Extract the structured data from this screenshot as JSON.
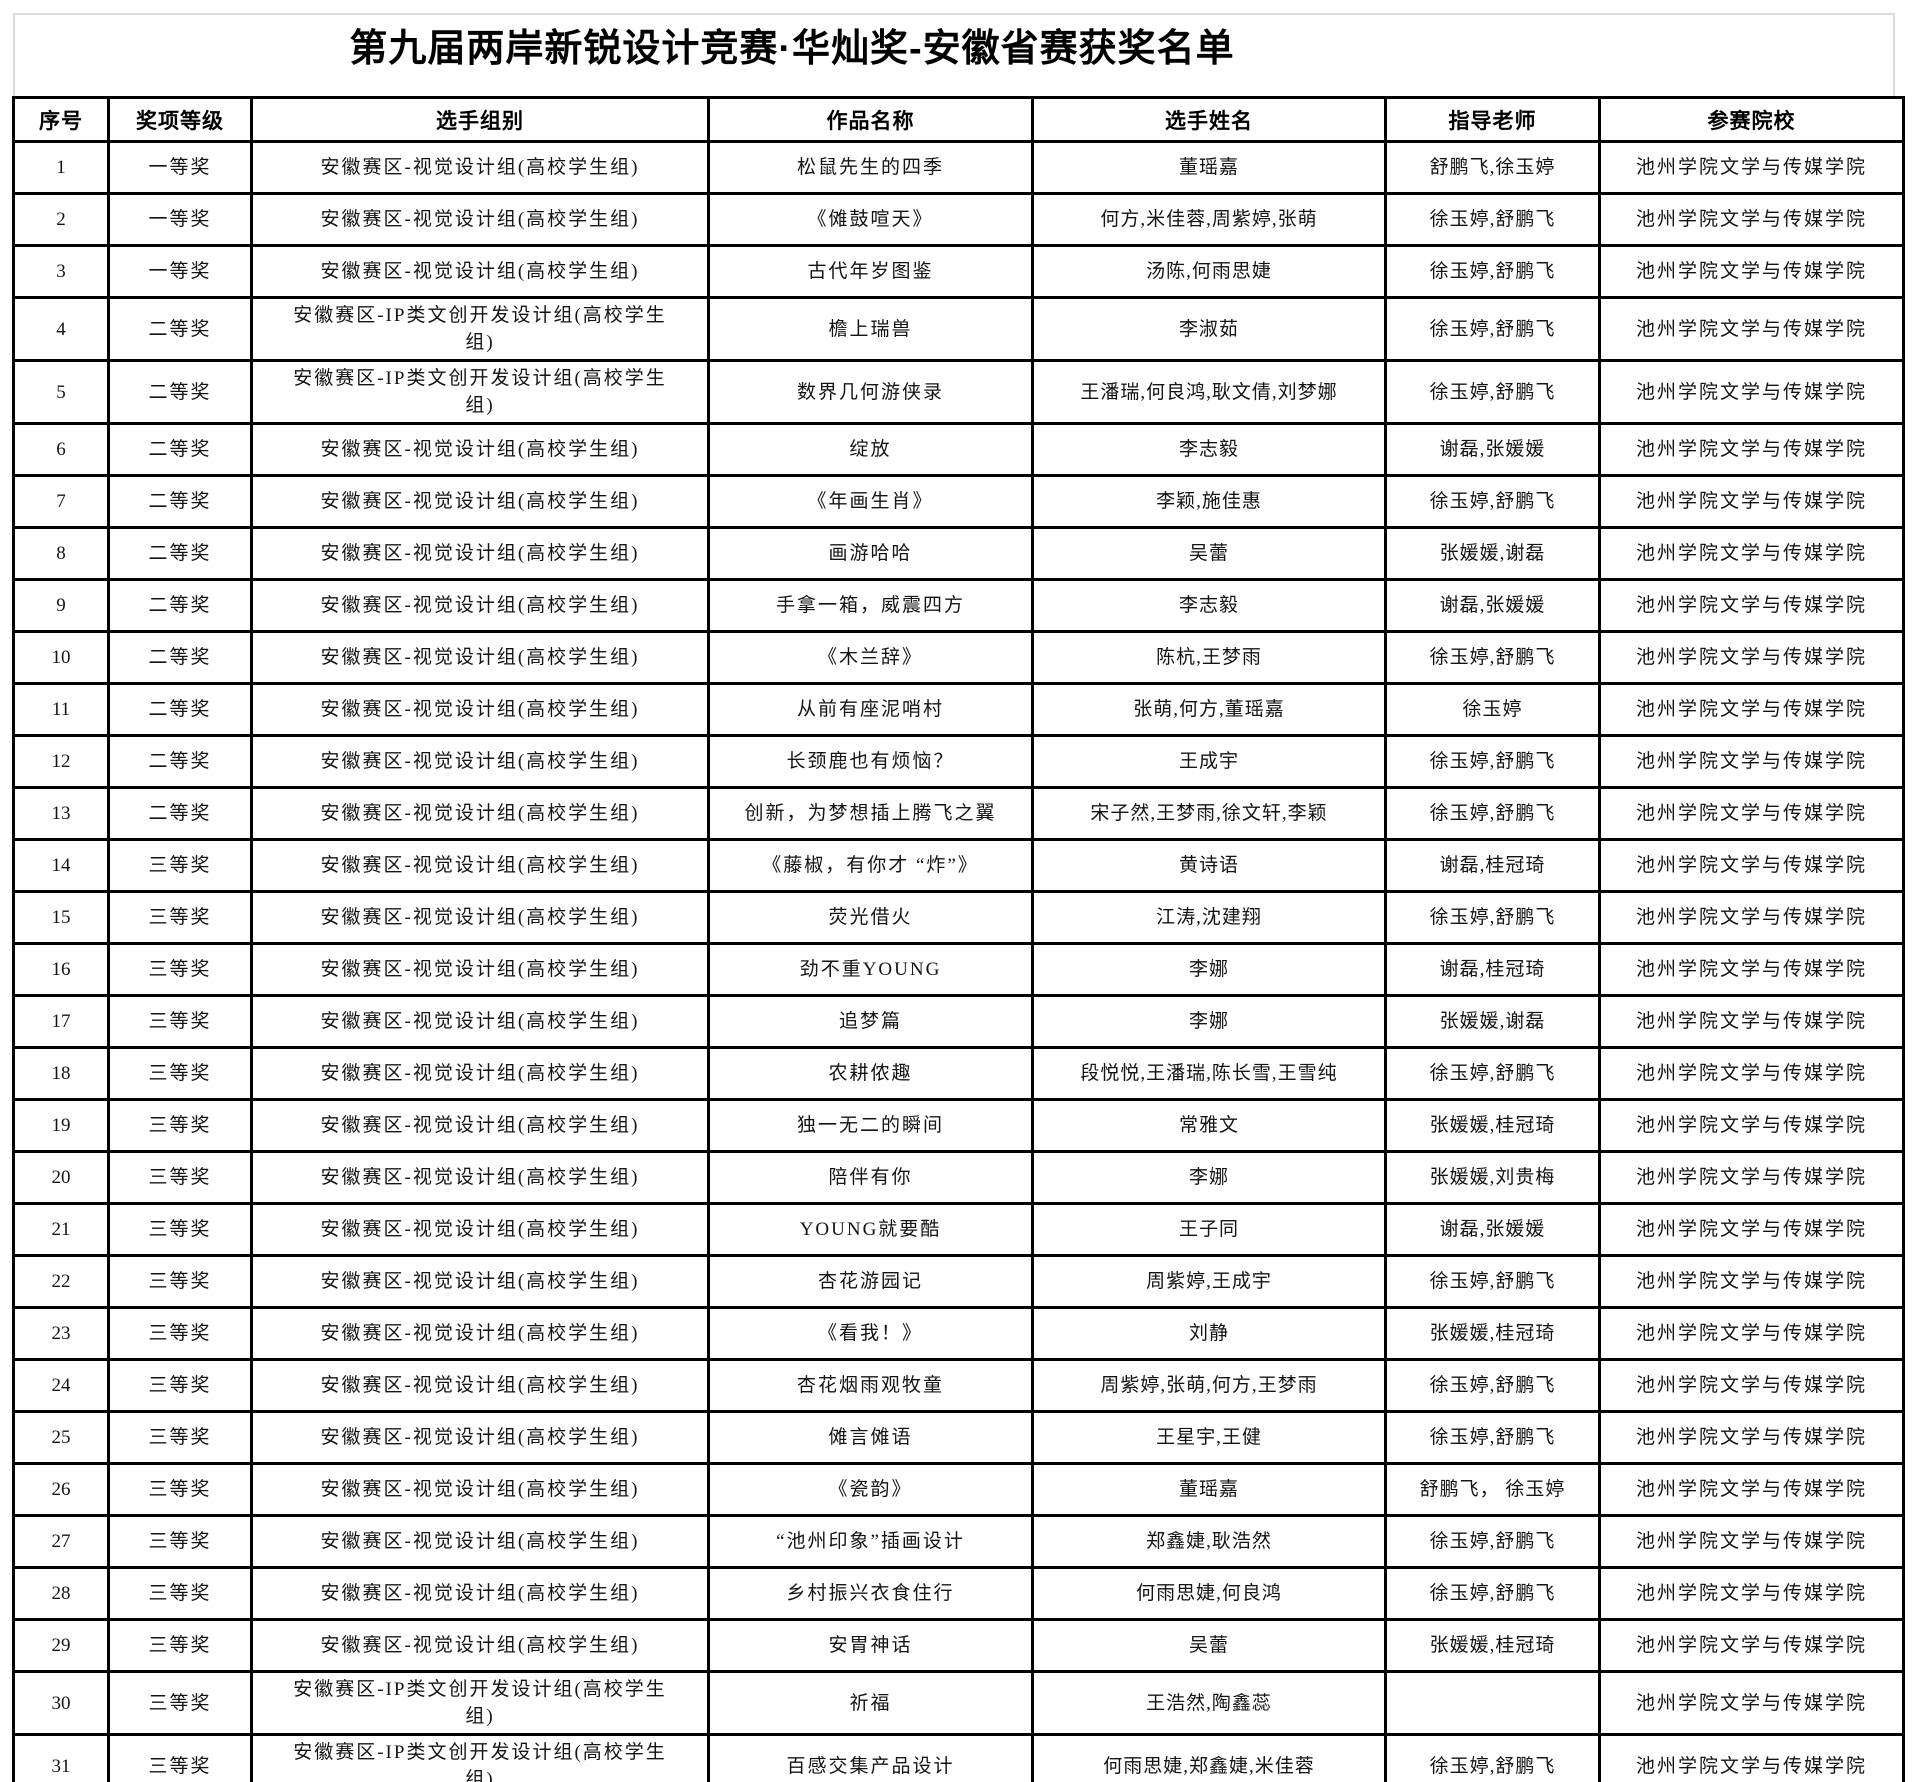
{
  "page": {
    "title": "第九届两岸新锐设计竞赛·华灿奖-安徽省赛获奖名单"
  },
  "table": {
    "columns": [
      {
        "key": "index",
        "label": "序号"
      },
      {
        "key": "award",
        "label": "奖项等级"
      },
      {
        "key": "group",
        "label": "选手组别"
      },
      {
        "key": "work",
        "label": "作品名称"
      },
      {
        "key": "contestants",
        "label": "选手姓名"
      },
      {
        "key": "teachers",
        "label": "指导老师"
      },
      {
        "key": "school",
        "label": "参赛院校"
      }
    ],
    "rows": [
      {
        "index": "1",
        "award": "一等奖",
        "group": "安徽赛区-视觉设计组(高校学生组)",
        "work": "松鼠先生的四季",
        "contestants": "董瑶嘉",
        "teachers": "舒鹏飞,徐玉婷",
        "school": "池州学院文学与传媒学院"
      },
      {
        "index": "2",
        "award": "一等奖",
        "group": "安徽赛区-视觉设计组(高校学生组)",
        "work": "《傩鼓喧天》",
        "contestants": "何方,米佳蓉,周紫婷,张萌",
        "teachers": "徐玉婷,舒鹏飞",
        "school": "池州学院文学与传媒学院"
      },
      {
        "index": "3",
        "award": "一等奖",
        "group": "安徽赛区-视觉设计组(高校学生组)",
        "work": "古代年岁图鉴",
        "contestants": "汤陈,何雨思婕",
        "teachers": "徐玉婷,舒鹏飞",
        "school": "池州学院文学与传媒学院"
      },
      {
        "index": "4",
        "award": "二等奖",
        "group": "安徽赛区-IP类文创开发设计组(高校学生组)",
        "work": "檐上瑞兽",
        "contestants": "李淑茹",
        "teachers": "徐玉婷,舒鹏飞",
        "school": "池州学院文学与传媒学院"
      },
      {
        "index": "5",
        "award": "二等奖",
        "group": "安徽赛区-IP类文创开发设计组(高校学生组)",
        "work": "数界几何游侠录",
        "contestants": "王潘瑞,何良鸿,耿文倩,刘梦娜",
        "teachers": "徐玉婷,舒鹏飞",
        "school": "池州学院文学与传媒学院"
      },
      {
        "index": "6",
        "award": "二等奖",
        "group": "安徽赛区-视觉设计组(高校学生组)",
        "work": "绽放",
        "contestants": "李志毅",
        "teachers": "谢磊,张媛媛",
        "school": "池州学院文学与传媒学院"
      },
      {
        "index": "7",
        "award": "二等奖",
        "group": "安徽赛区-视觉设计组(高校学生组)",
        "work": "《年画生肖》",
        "contestants": "李颖,施佳惠",
        "teachers": "徐玉婷,舒鹏飞",
        "school": "池州学院文学与传媒学院"
      },
      {
        "index": "8",
        "award": "二等奖",
        "group": "安徽赛区-视觉设计组(高校学生组)",
        "work": "画游哈哈",
        "contestants": "吴蕾",
        "teachers": "张媛媛,谢磊",
        "school": "池州学院文学与传媒学院"
      },
      {
        "index": "9",
        "award": "二等奖",
        "group": "安徽赛区-视觉设计组(高校学生组)",
        "work": "手拿一箱，威震四方",
        "contestants": "李志毅",
        "teachers": "谢磊,张媛媛",
        "school": "池州学院文学与传媒学院"
      },
      {
        "index": "10",
        "award": "二等奖",
        "group": "安徽赛区-视觉设计组(高校学生组)",
        "work": "《木兰辞》",
        "contestants": "陈杭,王梦雨",
        "teachers": "徐玉婷,舒鹏飞",
        "school": "池州学院文学与传媒学院"
      },
      {
        "index": "11",
        "award": "二等奖",
        "group": "安徽赛区-视觉设计组(高校学生组)",
        "work": "从前有座泥哨村",
        "contestants": "张萌,何方,董瑶嘉",
        "teachers": "徐玉婷",
        "school": "池州学院文学与传媒学院"
      },
      {
        "index": "12",
        "award": "二等奖",
        "group": "安徽赛区-视觉设计组(高校学生组)",
        "work": "长颈鹿也有烦恼？",
        "contestants": "王成宇",
        "teachers": "徐玉婷,舒鹏飞",
        "school": "池州学院文学与传媒学院"
      },
      {
        "index": "13",
        "award": "二等奖",
        "group": "安徽赛区-视觉设计组(高校学生组)",
        "work": "创新，为梦想插上腾飞之翼",
        "contestants": "宋子然,王梦雨,徐文轩,李颖",
        "teachers": "徐玉婷,舒鹏飞",
        "school": "池州学院文学与传媒学院"
      },
      {
        "index": "14",
        "award": "三等奖",
        "group": "安徽赛区-视觉设计组(高校学生组)",
        "work": "《藤椒，有你才 “炸”》",
        "contestants": "黄诗语",
        "teachers": "谢磊,桂冠琦",
        "school": "池州学院文学与传媒学院"
      },
      {
        "index": "15",
        "award": "三等奖",
        "group": "安徽赛区-视觉设计组(高校学生组)",
        "work": "荧光借火",
        "contestants": "江涛,沈建翔",
        "teachers": "徐玉婷,舒鹏飞",
        "school": "池州学院文学与传媒学院"
      },
      {
        "index": "16",
        "award": "三等奖",
        "group": "安徽赛区-视觉设计组(高校学生组)",
        "work": "劲不重YOUNG",
        "contestants": "李娜",
        "teachers": "谢磊,桂冠琦",
        "school": "池州学院文学与传媒学院"
      },
      {
        "index": "17",
        "award": "三等奖",
        "group": "安徽赛区-视觉设计组(高校学生组)",
        "work": "追梦篇",
        "contestants": "李娜",
        "teachers": "张媛媛,谢磊",
        "school": "池州学院文学与传媒学院"
      },
      {
        "index": "18",
        "award": "三等奖",
        "group": "安徽赛区-视觉设计组(高校学生组)",
        "work": "农耕侬趣",
        "contestants": "段悦悦,王潘瑞,陈长雪,王雪纯",
        "teachers": "徐玉婷,舒鹏飞",
        "school": "池州学院文学与传媒学院"
      },
      {
        "index": "19",
        "award": "三等奖",
        "group": "安徽赛区-视觉设计组(高校学生组)",
        "work": "独一无二的瞬间",
        "contestants": "常雅文",
        "teachers": "张媛媛,桂冠琦",
        "school": "池州学院文学与传媒学院"
      },
      {
        "index": "20",
        "award": "三等奖",
        "group": "安徽赛区-视觉设计组(高校学生组)",
        "work": "陪伴有你",
        "contestants": "李娜",
        "teachers": "张媛媛,刘贵梅",
        "school": "池州学院文学与传媒学院"
      },
      {
        "index": "21",
        "award": "三等奖",
        "group": "安徽赛区-视觉设计组(高校学生组)",
        "work": "YOUNG就要酷",
        "contestants": "王子同",
        "teachers": "谢磊,张媛媛",
        "school": "池州学院文学与传媒学院"
      },
      {
        "index": "22",
        "award": "三等奖",
        "group": "安徽赛区-视觉设计组(高校学生组)",
        "work": "杏花游园记",
        "contestants": "周紫婷,王成宇",
        "teachers": "徐玉婷,舒鹏飞",
        "school": "池州学院文学与传媒学院"
      },
      {
        "index": "23",
        "award": "三等奖",
        "group": "安徽赛区-视觉设计组(高校学生组)",
        "work": "《看我！》",
        "contestants": "刘静",
        "teachers": "张媛媛,桂冠琦",
        "school": "池州学院文学与传媒学院"
      },
      {
        "index": "24",
        "award": "三等奖",
        "group": "安徽赛区-视觉设计组(高校学生组)",
        "work": "杏花烟雨观牧童",
        "contestants": "周紫婷,张萌,何方,王梦雨",
        "teachers": "徐玉婷,舒鹏飞",
        "school": "池州学院文学与传媒学院"
      },
      {
        "index": "25",
        "award": "三等奖",
        "group": "安徽赛区-视觉设计组(高校学生组)",
        "work": "傩言傩语",
        "contestants": "王星宇,王健",
        "teachers": "徐玉婷,舒鹏飞",
        "school": "池州学院文学与传媒学院"
      },
      {
        "index": "26",
        "award": "三等奖",
        "group": "安徽赛区-视觉设计组(高校学生组)",
        "work": "《瓷韵》",
        "contestants": "董瑶嘉",
        "teachers": "舒鹏飞， 徐玉婷",
        "school": "池州学院文学与传媒学院"
      },
      {
        "index": "27",
        "award": "三等奖",
        "group": "安徽赛区-视觉设计组(高校学生组)",
        "work": "“池州印象”插画设计",
        "contestants": "郑鑫婕,耿浩然",
        "teachers": "徐玉婷,舒鹏飞",
        "school": "池州学院文学与传媒学院"
      },
      {
        "index": "28",
        "award": "三等奖",
        "group": "安徽赛区-视觉设计组(高校学生组)",
        "work": "乡村振兴衣食住行",
        "contestants": "何雨思婕,何良鸿",
        "teachers": "徐玉婷,舒鹏飞",
        "school": "池州学院文学与传媒学院"
      },
      {
        "index": "29",
        "award": "三等奖",
        "group": "安徽赛区-视觉设计组(高校学生组)",
        "work": "安胃神话",
        "contestants": "吴蕾",
        "teachers": "张媛媛,桂冠琦",
        "school": "池州学院文学与传媒学院"
      },
      {
        "index": "30",
        "award": "三等奖",
        "group": "安徽赛区-IP类文创开发设计组(高校学生组)",
        "work": "祈福",
        "contestants": "王浩然,陶鑫蕊",
        "teachers": "",
        "school": "池州学院文学与传媒学院"
      },
      {
        "index": "31",
        "award": "三等奖",
        "group": "安徽赛区-IP类文创开发设计组(高校学生组)",
        "work": "百感交集产品设计",
        "contestants": "何雨思婕,郑鑫婕,米佳蓉",
        "teachers": "徐玉婷,舒鹏飞",
        "school": "池州学院文学与传媒学院"
      }
    ]
  }
}
